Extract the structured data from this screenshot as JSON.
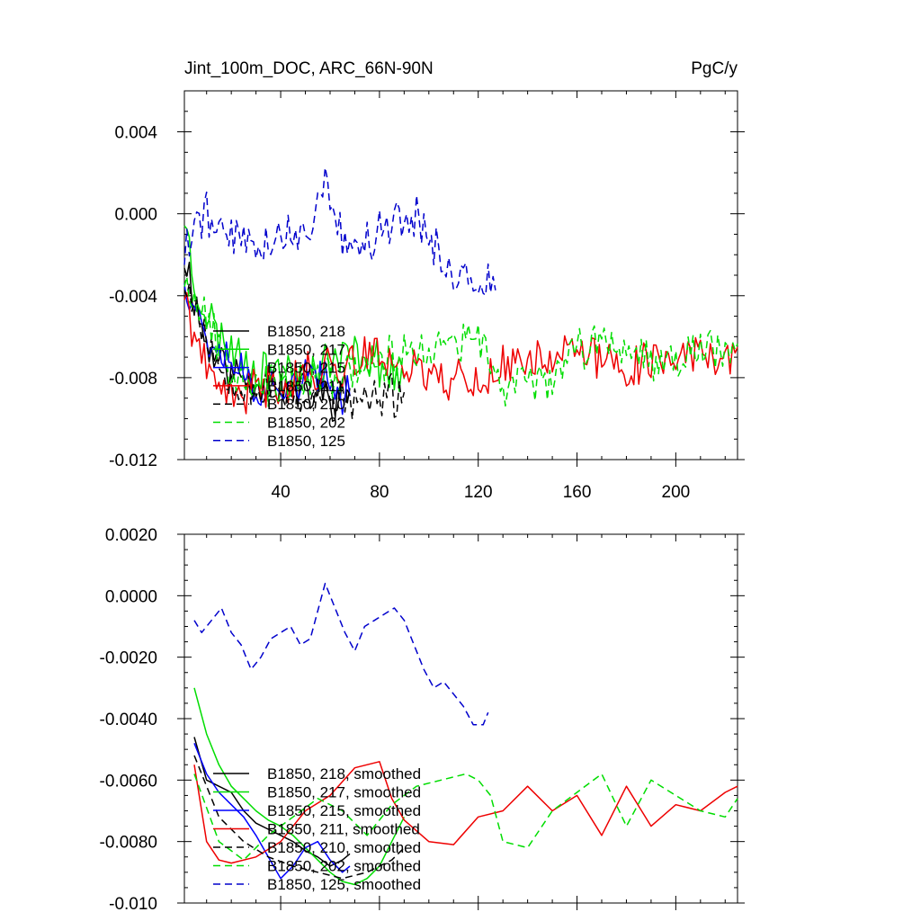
{
  "chart_data": [
    {
      "type": "line",
      "title": "Jint_100m_DOC, ARC_66N-90N",
      "units": "PgC/y",
      "xlabel": "",
      "ylabel": "",
      "xlim": [
        1,
        225
      ],
      "ylim": [
        -0.012,
        0.006
      ],
      "xticks": [
        40,
        80,
        120,
        160,
        200
      ],
      "xtick_labels": [
        "40",
        "80",
        "120",
        "160",
        "200"
      ],
      "yticks": [
        -0.012,
        -0.008,
        -0.004,
        0.0,
        0.004
      ],
      "ytick_labels": [
        "-0.012",
        "-0.008",
        "-0.004",
        "0.000",
        "0.004"
      ],
      "grid": false,
      "legend_position": "lower-left",
      "series": [
        {
          "name": "B1850, 218",
          "color": "#000000",
          "dash": "solid",
          "seed": 11,
          "x": [
            1,
            10,
            20,
            30,
            40,
            50,
            60,
            68
          ],
          "y": [
            -0.002,
            -0.0065,
            -0.0078,
            -0.0082,
            -0.0085,
            -0.0088,
            -0.009,
            -0.0088
          ]
        },
        {
          "name": "B1850, 217",
          "color": "#00dd00",
          "dash": "solid",
          "seed": 23,
          "x": [
            1,
            5,
            15,
            30,
            45,
            60,
            75,
            90
          ],
          "y": [
            0.0,
            -0.0035,
            -0.006,
            -0.0075,
            -0.0078,
            -0.0072,
            -0.0068,
            -0.0082
          ]
        },
        {
          "name": "B1850, 215",
          "color": "#0000ff",
          "dash": "solid",
          "seed": 37,
          "x": [
            1,
            10,
            20,
            30,
            40,
            50,
            60,
            68
          ],
          "y": [
            -0.003,
            -0.006,
            -0.007,
            -0.0085,
            -0.0082,
            -0.008,
            -0.0085,
            -0.0088
          ]
        },
        {
          "name": "B1850, 211",
          "color": "#ee0000",
          "dash": "solid",
          "seed": 41,
          "x": [
            1,
            10,
            20,
            40,
            60,
            80,
            100,
            120,
            140,
            160,
            180,
            200,
            225
          ],
          "y": [
            -0.004,
            -0.008,
            -0.009,
            -0.0082,
            -0.0075,
            -0.0068,
            -0.0078,
            -0.0082,
            -0.007,
            -0.0068,
            -0.0075,
            -0.0068,
            -0.007
          ]
        },
        {
          "name": "B1850, 210",
          "color": "#000000",
          "dash": "dashed",
          "seed": 53,
          "x": [
            1,
            15,
            30,
            45,
            60,
            75,
            90
          ],
          "y": [
            -0.003,
            -0.0075,
            -0.0085,
            -0.0088,
            -0.009,
            -0.0092,
            -0.0088
          ]
        },
        {
          "name": "B1850, 202",
          "color": "#00dd00",
          "dash": "dashed",
          "seed": 67,
          "x": [
            1,
            20,
            40,
            60,
            80,
            100,
            120,
            130,
            150,
            170,
            190,
            210,
            225
          ],
          "y": [
            -0.003,
            -0.0075,
            -0.0085,
            -0.008,
            -0.0072,
            -0.0066,
            -0.0062,
            -0.0085,
            -0.0078,
            -0.006,
            -0.007,
            -0.0066,
            -0.0068
          ]
        },
        {
          "name": "B1850, 125",
          "color": "#0000cc",
          "dash": "dashed",
          "seed": 79,
          "x": [
            1,
            5,
            10,
            20,
            30,
            40,
            50,
            58,
            65,
            75,
            85,
            95,
            105,
            110,
            120,
            127
          ],
          "y": [
            -0.002,
            -0.0005,
            0.0,
            -0.001,
            -0.0015,
            -0.001,
            -0.001,
            0.0015,
            -0.001,
            -0.0015,
            -0.0005,
            0.0,
            -0.002,
            -0.003,
            -0.004,
            -0.003
          ]
        }
      ],
      "legend": [
        "B1850, 218",
        "B1850, 217",
        "B1850, 215",
        "B1850, 211",
        "B1850, 210",
        "B1850, 202",
        "B1850, 125"
      ]
    },
    {
      "type": "line",
      "title": "",
      "xlabel": "",
      "ylabel": "",
      "xlim": [
        1,
        225
      ],
      "ylim": [
        -0.01,
        0.002
      ],
      "xticks": [
        40,
        80,
        120,
        160,
        200
      ],
      "xtick_labels": [],
      "yticks": [
        -0.01,
        -0.008,
        -0.006,
        -0.004,
        -0.002,
        0.0,
        0.002
      ],
      "ytick_labels": [
        "-0.010",
        "-0.0080",
        "-0.0060",
        "-0.0040",
        "-0.0020",
        "0.0000",
        "0.0020"
      ],
      "grid": false,
      "legend_position": "lower-left",
      "series": [
        {
          "name": "B1850, 218, smoothed",
          "color": "#000000",
          "dash": "solid",
          "x": [
            5,
            10,
            15,
            20,
            25,
            30,
            35,
            40,
            45,
            50,
            55,
            60,
            65,
            68
          ],
          "y": [
            -0.0046,
            -0.006,
            -0.0062,
            -0.0064,
            -0.007,
            -0.0074,
            -0.0076,
            -0.0078,
            -0.008,
            -0.0083,
            -0.0085,
            -0.0088,
            -0.0086,
            -0.0084
          ]
        },
        {
          "name": "B1850, 217, smoothed",
          "color": "#00dd00",
          "dash": "solid",
          "x": [
            5,
            10,
            15,
            20,
            25,
            30,
            35,
            40,
            45,
            50,
            55,
            60,
            65,
            70,
            75,
            80,
            85,
            90
          ],
          "y": [
            -0.003,
            -0.0045,
            -0.0055,
            -0.0062,
            -0.0066,
            -0.007,
            -0.0073,
            -0.0075,
            -0.0078,
            -0.0082,
            -0.0086,
            -0.009,
            -0.0093,
            -0.0094,
            -0.0092,
            -0.0088,
            -0.008,
            -0.0072
          ]
        },
        {
          "name": "B1850, 215, smoothed",
          "color": "#0000ff",
          "dash": "solid",
          "x": [
            5,
            10,
            15,
            20,
            25,
            30,
            35,
            40,
            45,
            50,
            55,
            60,
            65,
            68
          ],
          "y": [
            -0.0048,
            -0.0058,
            -0.0064,
            -0.0068,
            -0.0072,
            -0.0078,
            -0.0085,
            -0.0092,
            -0.0088,
            -0.0082,
            -0.008,
            -0.0086,
            -0.009,
            -0.0088
          ]
        },
        {
          "name": "B1850, 211, smoothed",
          "color": "#ee0000",
          "dash": "solid",
          "x": [
            5,
            10,
            15,
            20,
            30,
            40,
            50,
            60,
            70,
            80,
            85,
            90,
            100,
            110,
            120,
            130,
            140,
            150,
            160,
            170,
            180,
            190,
            200,
            210,
            220,
            225
          ],
          "y": [
            -0.0055,
            -0.008,
            -0.0086,
            -0.0087,
            -0.0085,
            -0.008,
            -0.007,
            -0.0065,
            -0.0056,
            -0.0054,
            -0.0066,
            -0.0073,
            -0.008,
            -0.0081,
            -0.0072,
            -0.007,
            -0.0062,
            -0.007,
            -0.0065,
            -0.0078,
            -0.0062,
            -0.0075,
            -0.0068,
            -0.007,
            -0.0064,
            -0.0062
          ]
        },
        {
          "name": "B1850, 210, smoothed",
          "color": "#000000",
          "dash": "dashed",
          "x": [
            5,
            15,
            25,
            35,
            45,
            55,
            65,
            75,
            85,
            90
          ],
          "y": [
            -0.0052,
            -0.0072,
            -0.008,
            -0.0085,
            -0.0088,
            -0.009,
            -0.0092,
            -0.009,
            -0.0086,
            -0.0082
          ]
        },
        {
          "name": "B1850, 202, smoothed",
          "color": "#00dd00",
          "dash": "dashed",
          "x": [
            5,
            15,
            25,
            35,
            45,
            55,
            65,
            75,
            85,
            95,
            105,
            115,
            120,
            125,
            130,
            140,
            150,
            160,
            170,
            180,
            190,
            200,
            210,
            220,
            225
          ],
          "y": [
            -0.0058,
            -0.008,
            -0.0086,
            -0.0078,
            -0.0072,
            -0.0066,
            -0.007,
            -0.0078,
            -0.0068,
            -0.0062,
            -0.006,
            -0.0058,
            -0.006,
            -0.0065,
            -0.008,
            -0.0082,
            -0.007,
            -0.0064,
            -0.0058,
            -0.0075,
            -0.006,
            -0.0065,
            -0.007,
            -0.0072,
            -0.0066
          ]
        },
        {
          "name": "B1850, 125, smoothed",
          "color": "#0000cc",
          "dash": "dashed",
          "x": [
            5,
            8,
            12,
            16,
            20,
            24,
            28,
            32,
            36,
            40,
            44,
            48,
            52,
            56,
            58,
            62,
            66,
            70,
            74,
            78,
            82,
            86,
            90,
            94,
            98,
            102,
            106,
            110,
            114,
            118,
            122,
            124
          ],
          "y": [
            -0.0008,
            -0.0012,
            -0.0008,
            -0.0004,
            -0.0012,
            -0.0016,
            -0.0024,
            -0.002,
            -0.0014,
            -0.0012,
            -0.001,
            -0.0016,
            -0.0014,
            -0.0002,
            0.0004,
            -0.0004,
            -0.0012,
            -0.0018,
            -0.001,
            -0.0008,
            -0.0006,
            -0.0004,
            -0.0008,
            -0.0016,
            -0.0024,
            -0.003,
            -0.0028,
            -0.0032,
            -0.0036,
            -0.0042,
            -0.0042,
            -0.0038
          ]
        }
      ],
      "legend": [
        "B1850, 218, smoothed",
        "B1850, 217, smoothed",
        "B1850, 215, smoothed",
        "B1850, 211, smoothed",
        "B1850, 210, smoothed",
        "B1850, 202, smoothed",
        "B1850, 125, smoothed"
      ]
    }
  ]
}
